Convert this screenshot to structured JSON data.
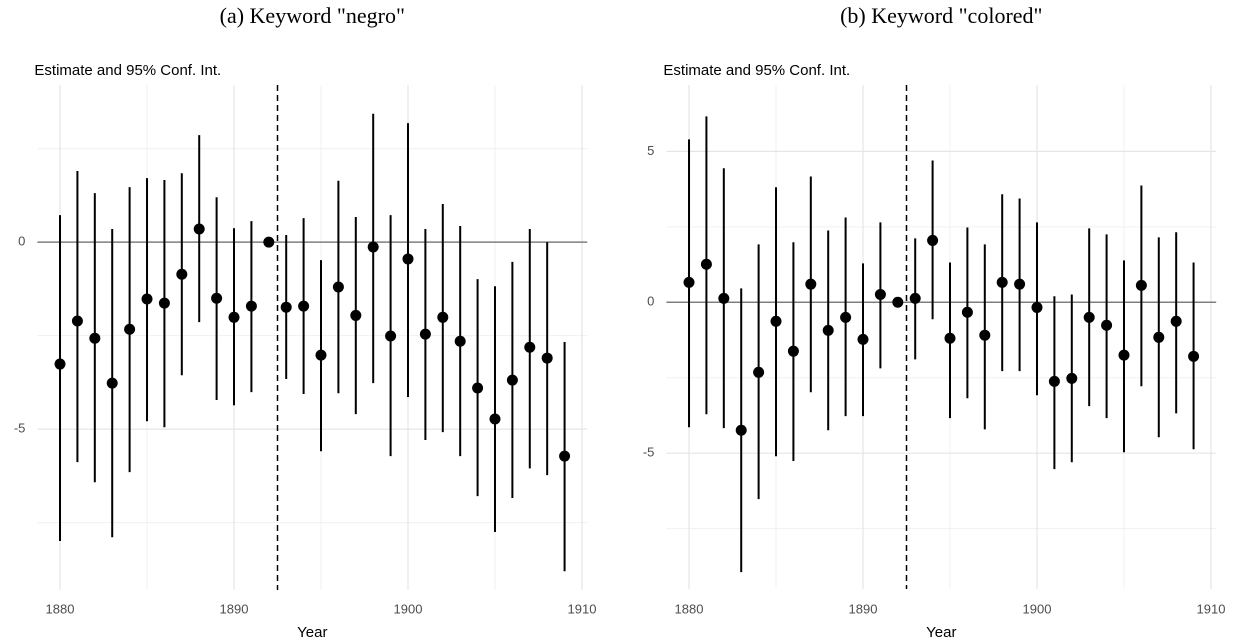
{
  "chart_data": [
    {
      "type": "pointrange",
      "title": "(a) Keyword \"negro\"",
      "subtitle": "Estimate and 95% Conf. Int.",
      "x_label": "Year",
      "x": [
        1880,
        1881,
        1882,
        1883,
        1884,
        1885,
        1886,
        1887,
        1888,
        1889,
        1890,
        1891,
        1892,
        1893,
        1894,
        1895,
        1896,
        1897,
        1898,
        1899,
        1900,
        1901,
        1902,
        1903,
        1904,
        1905,
        1906,
        1907,
        1908,
        1909
      ],
      "values": [
        -3.26,
        -2.11,
        -2.57,
        -3.77,
        -2.33,
        -1.52,
        -1.63,
        -0.86,
        0.35,
        -1.5,
        -2.01,
        -1.71,
        0,
        -1.74,
        -1.71,
        -3.02,
        -1.2,
        -1.96,
        -0.13,
        -2.51,
        -0.45,
        -2.46,
        -2.01,
        -2.65,
        -3.9,
        -4.73,
        -3.69,
        -2.81,
        -3.1,
        -5.72
      ],
      "lower": [
        -7.99,
        -5.88,
        -6.42,
        -7.89,
        -6.15,
        -4.79,
        -4.95,
        -3.56,
        -2.14,
        -4.22,
        -4.36,
        -4.01,
        null,
        -3.66,
        -4.06,
        -5.59,
        -4.04,
        -4.6,
        -3.77,
        -5.72,
        -4.14,
        -5.29,
        -5.08,
        -5.72,
        -6.79,
        -7.75,
        -6.84,
        -6.05,
        -6.23,
        -8.8
      ],
      "upper": [
        0.72,
        1.9,
        1.31,
        0.35,
        1.47,
        1.71,
        1.66,
        1.84,
        2.86,
        1.2,
        0.37,
        0.56,
        null,
        0.19,
        0.64,
        -0.48,
        1.64,
        0.67,
        3.43,
        0.72,
        3.18,
        0.35,
        1.02,
        0.43,
        -0.99,
        -1.18,
        -0.53,
        0.35,
        0,
        -2.67
      ],
      "color": "#000000",
      "xlim": [
        1878.7,
        1910.3
      ],
      "ylim": [
        -9.3,
        4.2
      ],
      "xticks": [
        1880,
        1890,
        1900,
        1910
      ],
      "yticks": [
        -5,
        0
      ],
      "x_minor_grid": [
        1885,
        1895,
        1905
      ],
      "y_minor_grid": [
        -7.5,
        -2.5,
        2.5
      ],
      "hline": 0,
      "vline": 1892.5
    },
    {
      "type": "pointrange",
      "title": "(b) Keyword \"colored\"",
      "subtitle": "Estimate and 95% Conf. Int.",
      "x_label": "Year",
      "x": [
        1880,
        1881,
        1882,
        1883,
        1884,
        1885,
        1886,
        1887,
        1888,
        1889,
        1890,
        1891,
        1892,
        1893,
        1894,
        1895,
        1896,
        1897,
        1898,
        1899,
        1900,
        1901,
        1902,
        1903,
        1904,
        1905,
        1906,
        1907,
        1908,
        1909
      ],
      "values": [
        0.66,
        1.26,
        0.13,
        -4.24,
        -2.32,
        -0.63,
        -1.62,
        0.6,
        -0.93,
        -0.5,
        -1.23,
        0.26,
        0,
        0.13,
        2.05,
        -1.19,
        -0.33,
        -1.09,
        0.66,
        0.6,
        -0.17,
        -2.62,
        -2.52,
        -0.5,
        -0.76,
        -1.75,
        0.56,
        -1.16,
        -0.63,
        -1.79
      ],
      "lower": [
        -4.14,
        -3.71,
        -4.17,
        -8.94,
        -6.52,
        -5.1,
        -5.26,
        -2.98,
        -4.24,
        -3.77,
        -3.77,
        -2.19,
        null,
        -1.89,
        -0.56,
        -3.84,
        -3.18,
        -4.21,
        -2.28,
        -2.28,
        -3.08,
        -5.53,
        -5.3,
        -3.44,
        -3.84,
        -4.97,
        -2.78,
        -4.47,
        -3.68,
        -4.87
      ],
      "upper": [
        5.4,
        6.16,
        4.44,
        0.46,
        1.92,
        3.81,
        1.99,
        4.17,
        2.38,
        2.81,
        1.29,
        2.65,
        null,
        2.12,
        4.7,
        1.32,
        2.48,
        1.92,
        3.58,
        3.44,
        2.65,
        0.2,
        0.26,
        2.45,
        2.25,
        1.39,
        3.87,
        2.15,
        2.32,
        1.32
      ],
      "color": "#000000",
      "xlim": [
        1878.7,
        1910.3
      ],
      "ylim": [
        -9.5,
        7.2
      ],
      "xticks": [
        1880,
        1890,
        1900,
        1910
      ],
      "yticks": [
        -5,
        0,
        5
      ],
      "x_minor_grid": [
        1885,
        1895,
        1905
      ],
      "y_minor_grid": [
        -7.5,
        -2.5,
        2.5
      ],
      "hline": 0,
      "vline": 1892.5
    }
  ]
}
